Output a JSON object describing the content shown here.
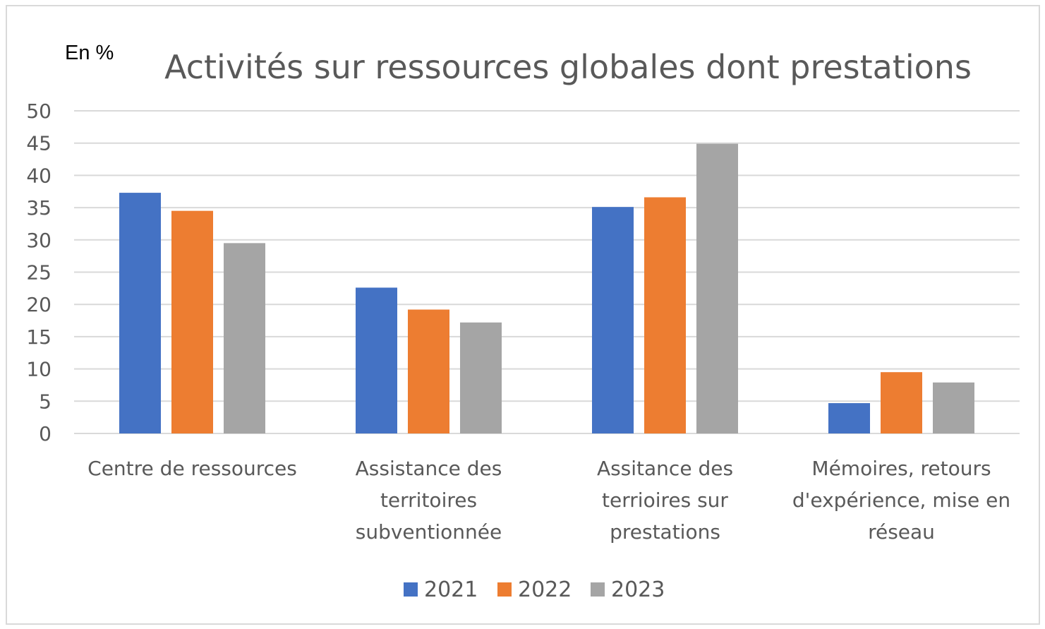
{
  "chart_data": {
    "type": "bar",
    "title": "Activités sur ressources globales dont prestations",
    "unit_label": "En %",
    "ylim": [
      0,
      50
    ],
    "yticks": [
      "0",
      "5",
      "10",
      "15",
      "20",
      "25",
      "30",
      "35",
      "40",
      "45",
      "50"
    ],
    "grid": true,
    "legend_position": "bottom",
    "categories": [
      [
        "Centre de ressources"
      ],
      [
        "Assistance des",
        "territoires",
        "subventionnée"
      ],
      [
        "Assitance des",
        "terrioires sur",
        "prestations"
      ],
      [
        "Mémoires, retours",
        "d'expérience, mise en",
        "réseau"
      ]
    ],
    "series": [
      {
        "name": "2021",
        "color": "#4472c4",
        "values": [
          37.3,
          22.6,
          35.1,
          4.7
        ]
      },
      {
        "name": "2022",
        "color": "#ed7d31",
        "values": [
          34.5,
          19.2,
          36.6,
          9.5
        ]
      },
      {
        "name": "2023",
        "color": "#a5a5a5",
        "values": [
          29.5,
          17.2,
          44.9,
          7.9
        ]
      }
    ]
  }
}
